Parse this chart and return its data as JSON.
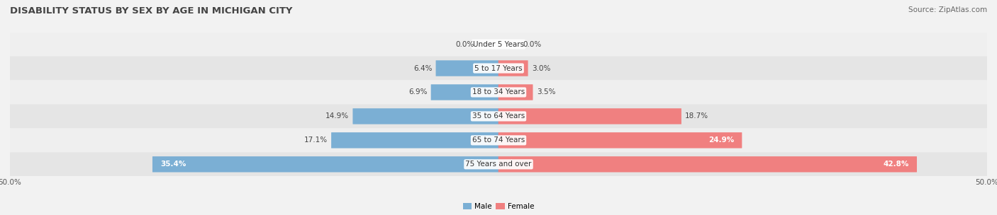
{
  "title": "DISABILITY STATUS BY SEX BY AGE IN MICHIGAN CITY",
  "source": "Source: ZipAtlas.com",
  "categories": [
    "Under 5 Years",
    "5 to 17 Years",
    "18 to 34 Years",
    "35 to 64 Years",
    "65 to 74 Years",
    "75 Years and over"
  ],
  "male_values": [
    0.0,
    6.4,
    6.9,
    14.9,
    17.1,
    35.4
  ],
  "female_values": [
    0.0,
    3.0,
    3.5,
    18.7,
    24.9,
    42.8
  ],
  "male_color": "#7bafd4",
  "female_color": "#f08080",
  "xlim": 50.0,
  "bar_height": 0.62,
  "figsize": [
    14.06,
    3.04
  ],
  "dpi": 100,
  "title_fontsize": 9.5,
  "label_fontsize": 7.5,
  "tick_fontsize": 7.5,
  "source_fontsize": 7.5,
  "inside_label_threshold": 20.0,
  "row_bg_even": "#efefef",
  "row_bg_odd": "#e5e5e5",
  "fig_bg": "#f2f2f2"
}
